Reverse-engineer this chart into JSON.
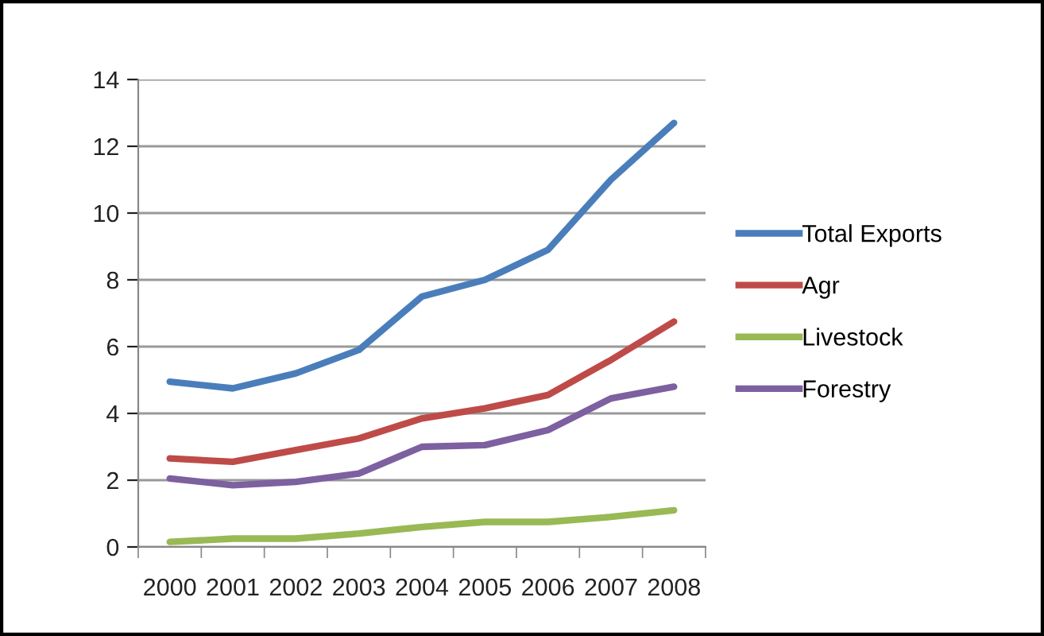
{
  "chart_data": {
    "type": "line",
    "categories": [
      "2000",
      "2001",
      "2002",
      "2003",
      "2004",
      "2005",
      "2006",
      "2007",
      "2008"
    ],
    "series": [
      {
        "name": "Total Exports",
        "color": "#4a7ebb",
        "values": [
          4.95,
          4.75,
          5.2,
          5.9,
          7.5,
          8.0,
          8.9,
          11.0,
          12.7
        ]
      },
      {
        "name": "Agr",
        "color": "#be4b48",
        "values": [
          2.65,
          2.55,
          2.9,
          3.25,
          3.85,
          4.15,
          4.55,
          5.6,
          6.75
        ]
      },
      {
        "name": "Livestock",
        "color": "#98b954",
        "values": [
          0.15,
          0.25,
          0.25,
          0.4,
          0.6,
          0.75,
          0.75,
          0.9,
          1.1
        ]
      },
      {
        "name": "Forestry",
        "color": "#7d60a0",
        "values": [
          2.05,
          1.85,
          1.95,
          2.2,
          3.0,
          3.05,
          3.5,
          4.45,
          4.8
        ]
      }
    ],
    "ylim": [
      0,
      14
    ],
    "yticks": [
      0,
      2,
      4,
      6,
      8,
      10,
      12,
      14
    ],
    "grid": "y",
    "legend": "right",
    "marker": "none",
    "line_style": "solid"
  }
}
